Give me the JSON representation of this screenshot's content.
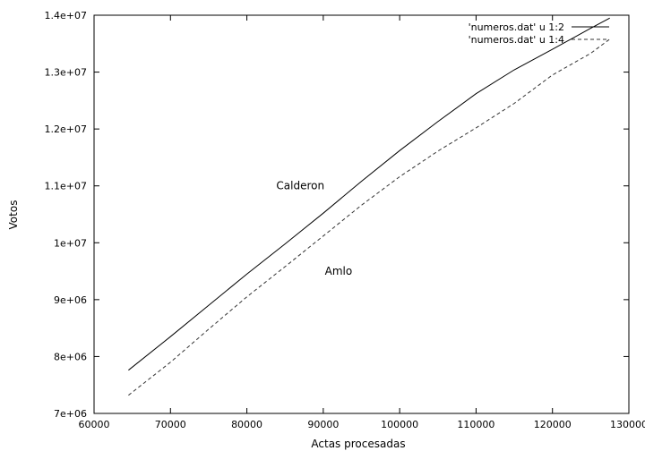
{
  "chart_data": {
    "type": "line",
    "xlabel": "Actas procesadas",
    "ylabel": "Votos",
    "xlim": [
      60000,
      130000
    ],
    "ylim": [
      7000000,
      14000000
    ],
    "x_ticks": [
      60000,
      70000,
      80000,
      90000,
      100000,
      110000,
      120000,
      130000
    ],
    "x_tick_labels": [
      "60000",
      "70000",
      "80000",
      "90000",
      "100000",
      "110000",
      "120000",
      "130000"
    ],
    "y_ticks": [
      7000000,
      8000000,
      9000000,
      10000000,
      11000000,
      12000000,
      13000000,
      14000000
    ],
    "y_tick_labels": [
      "7e+06",
      "8e+06",
      "9e+06",
      "1e+07",
      "1.1e+07",
      "1.2e+07",
      "1.3e+07",
      "1.4e+07"
    ],
    "grid": false,
    "legend_position": "top-right",
    "series": [
      {
        "name": "'numeros.dat' u 1:2",
        "style": "solid",
        "x": [
          64500,
          70000,
          75000,
          80000,
          85000,
          90000,
          95000,
          100000,
          105000,
          110000,
          115000,
          120000,
          125000,
          127500
        ],
        "y": [
          7760000,
          8350000,
          8900000,
          9450000,
          9980000,
          10520000,
          11080000,
          11620000,
          12130000,
          12620000,
          13040000,
          13400000,
          13770000,
          13950000
        ]
      },
      {
        "name": "'numeros.dat' u 1:4",
        "style": "dashed",
        "x": [
          64500,
          70000,
          75000,
          80000,
          85000,
          90000,
          95000,
          100000,
          105000,
          110000,
          115000,
          120000,
          125000,
          127500
        ],
        "y": [
          7320000,
          7900000,
          8480000,
          9050000,
          9580000,
          10120000,
          10660000,
          11160000,
          11610000,
          12020000,
          12450000,
          12950000,
          13330000,
          13580000
        ]
      }
    ],
    "annotations": [
      {
        "text": "Calderon",
        "x": 87000,
        "y": 11000000
      },
      {
        "text": "Amlo",
        "x": 92000,
        "y": 9500000
      }
    ]
  }
}
